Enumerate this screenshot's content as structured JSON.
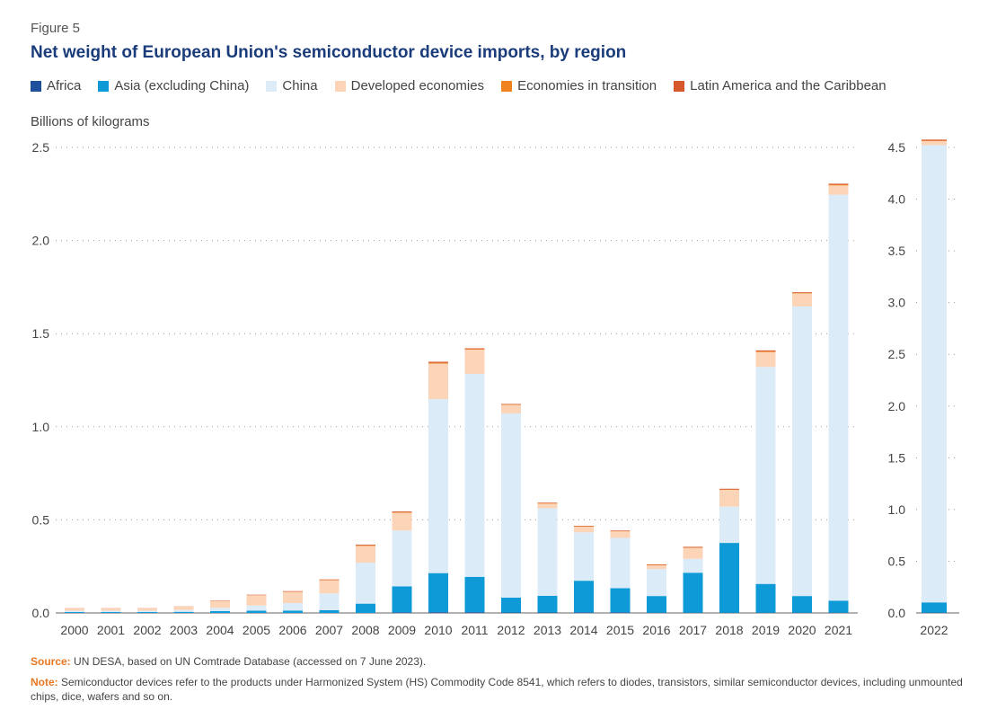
{
  "figure_label": "Figure 5",
  "title": "Net weight of European Union's semiconductor device imports, by region",
  "ylabel": "Billions of kilograms",
  "legend": [
    {
      "name": "Africa",
      "color": "#1f4e9c"
    },
    {
      "name": "Asia (excluding China)",
      "color": "#0e9ad7"
    },
    {
      "name": "China",
      "color": "#dcebf8"
    },
    {
      "name": "Developed economies",
      "color": "#fcd4b8"
    },
    {
      "name": "Economies in transition",
      "color": "#f0821e"
    },
    {
      "name": "Latin America and the Caribbean",
      "color": "#d4582a"
    }
  ],
  "source": {
    "key": "Source:",
    "text": " UN DESA, based on UN Comtrade Database (accessed on 7 June 2023)."
  },
  "note": {
    "key": "Note:",
    "text": " Semiconductor devices refer to the products under Harmonized System (HS) Commodity Code 8541, which refers to diodes, transistors, similar semiconductor devices, including unmounted chips, dice, wafers and so on."
  },
  "chart_data": [
    {
      "type": "bar",
      "stacked": true,
      "categories": [
        "2000",
        "2001",
        "2002",
        "2003",
        "2004",
        "2005",
        "2006",
        "2007",
        "2008",
        "2009",
        "2010",
        "2011",
        "2012",
        "2013",
        "2014",
        "2015",
        "2016",
        "2017",
        "2018",
        "2019",
        "2020",
        "2021"
      ],
      "ylim": [
        0,
        2.5
      ],
      "yticks": [
        "0.0",
        "0.5",
        "1.0",
        "1.5",
        "2.0",
        "2.5"
      ],
      "grid": true,
      "series": [
        {
          "name": "Africa",
          "color": "#1f4e9c",
          "values": [
            0,
            0,
            0,
            0,
            0,
            0,
            0,
            0,
            0,
            0.003,
            0.004,
            0.004,
            0.002,
            0.002,
            0.003,
            0.003,
            0.001,
            0.001,
            0.001,
            0.001,
            0.001,
            0.001
          ]
        },
        {
          "name": "Asia (excluding China)",
          "color": "#0e9ad7",
          "values": [
            0.005,
            0.005,
            0.005,
            0.006,
            0.01,
            0.012,
            0.013,
            0.015,
            0.05,
            0.14,
            0.21,
            0.19,
            0.08,
            0.09,
            0.17,
            0.13,
            0.09,
            0.215,
            0.375,
            0.155,
            0.09,
            0.065
          ]
        },
        {
          "name": "China",
          "color": "#dcebf8",
          "values": [
            0.007,
            0.007,
            0.007,
            0.01,
            0.018,
            0.028,
            0.04,
            0.09,
            0.22,
            0.3,
            0.935,
            1.09,
            0.99,
            0.47,
            0.26,
            0.27,
            0.145,
            0.075,
            0.195,
            1.165,
            1.555,
            2.18
          ]
        },
        {
          "name": "Developed economies",
          "color": "#fcd4b8",
          "values": [
            0.012,
            0.012,
            0.012,
            0.018,
            0.035,
            0.055,
            0.06,
            0.07,
            0.09,
            0.095,
            0.19,
            0.13,
            0.045,
            0.025,
            0.03,
            0.035,
            0.02,
            0.058,
            0.09,
            0.08,
            0.07,
            0.05
          ]
        },
        {
          "name": "Economies in transition",
          "color": "#f0821e",
          "values": [
            0,
            0,
            0,
            0,
            0.001,
            0.001,
            0.001,
            0.002,
            0.003,
            0.003,
            0.004,
            0.003,
            0.002,
            0.002,
            0.002,
            0.002,
            0.002,
            0.002,
            0.002,
            0.004,
            0.002,
            0.004
          ]
        },
        {
          "name": "Latin America and the Caribbean",
          "color": "#d4582a",
          "values": [
            0.001,
            0.001,
            0.001,
            0.001,
            0.002,
            0.002,
            0.003,
            0.003,
            0.004,
            0.004,
            0.006,
            0.004,
            0.003,
            0.003,
            0.003,
            0.003,
            0.003,
            0.004,
            0.004,
            0.005,
            0.004,
            0.005
          ]
        }
      ]
    },
    {
      "type": "bar",
      "stacked": true,
      "categories": [
        "2022"
      ],
      "ylim": [
        0,
        4.5
      ],
      "yticks": [
        "0.0",
        "0.5",
        "1.0",
        "1.5",
        "2.0",
        "2.5",
        "3.0",
        "3.5",
        "4.0",
        "4.5"
      ],
      "grid": true,
      "series": [
        {
          "name": "Africa",
          "color": "#1f4e9c",
          "values": [
            0.002
          ]
        },
        {
          "name": "Asia (excluding China)",
          "color": "#0e9ad7",
          "values": [
            0.1
          ]
        },
        {
          "name": "China",
          "color": "#dcebf8",
          "values": [
            4.42
          ]
        },
        {
          "name": "Developed economies",
          "color": "#fcd4b8",
          "values": [
            0.04
          ]
        },
        {
          "name": "Economies in transition",
          "color": "#f0821e",
          "values": [
            0.003
          ]
        },
        {
          "name": "Latin America and the Caribbean",
          "color": "#d4582a",
          "values": [
            0.01
          ]
        }
      ]
    }
  ]
}
